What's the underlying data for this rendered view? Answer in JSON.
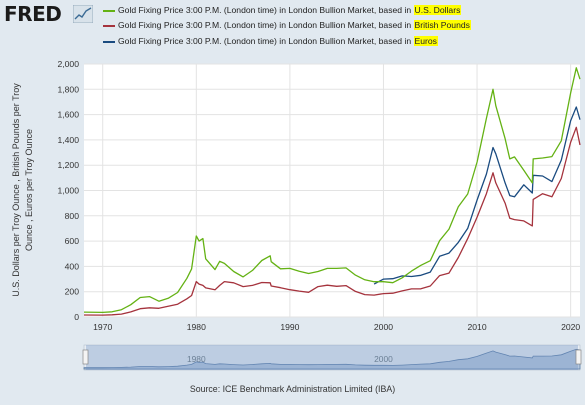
{
  "header": {
    "logo_text": "FRED",
    "logo_icon": "trend-chart-icon",
    "legend": [
      {
        "prefix": "Gold Fixing Price 3:00 P.M. (London time) in London Bullion Market, based in ",
        "highlight": "U.S. Dollars",
        "color": "#64b214"
      },
      {
        "prefix": "Gold Fixing Price 3:00 P.M. (London time) in London Bullion Market, based in ",
        "highlight": "British Pounds",
        "color": "#a5333d"
      },
      {
        "prefix": "Gold Fixing Price 3:00 P.M. (London time) in London Bullion Market, based in ",
        "highlight": "Euros",
        "color": "#1a4b80"
      }
    ]
  },
  "chart_data": {
    "type": "line",
    "ylabel": "U.S. Dollars per Troy Ounce , British Pounds per Troy Ounce , Euros per Troy Ounce",
    "xlim": [
      1968,
      2021
    ],
    "ylim": [
      0,
      2000
    ],
    "yticks": [
      0,
      200,
      400,
      600,
      800,
      1000,
      1200,
      1400,
      1600,
      1800,
      2000
    ],
    "ytick_labels": [
      "0",
      "200",
      "400",
      "600",
      "800",
      "1,000",
      "1,200",
      "1,400",
      "1,600",
      "1,800",
      "2,000"
    ],
    "xticks": [
      1970,
      1980,
      1990,
      2000,
      2010,
      2020
    ],
    "xtick_labels": [
      "1970",
      "1980",
      "1990",
      "2000",
      "2010",
      "2020"
    ],
    "grid": true,
    "series": [
      {
        "name": "U.S. Dollars",
        "color": "#64b214",
        "x": [
          1968,
          1970,
          1971,
          1972,
          1973,
          1974,
          1975,
          1976,
          1977,
          1978,
          1979,
          1979.5,
          1980,
          1980.3,
          1980.7,
          1981,
          1982,
          1982.5,
          1983,
          1984,
          1985,
          1986,
          1987,
          1987.9,
          1988,
          1989,
          1990,
          1991,
          1992,
          1993,
          1994,
          1995,
          1996,
          1997,
          1998,
          1999,
          2000,
          2001,
          2002,
          2003,
          2004,
          2005,
          2006,
          2007,
          2008,
          2009,
          2010,
          2011,
          2011.7,
          2012,
          2013,
          2013.5,
          2014,
          2015,
          2015.9,
          2016,
          2017,
          2018,
          2019,
          2020,
          2020.6,
          2021
        ],
        "values": [
          39,
          36,
          41,
          58,
          97,
          154,
          161,
          125,
          148,
          194,
          306,
          380,
          640,
          600,
          620,
          460,
          375,
          440,
          424,
          360,
          317,
          368,
          447,
          484,
          437,
          381,
          384,
          362,
          344,
          360,
          384,
          384,
          388,
          331,
          294,
          279,
          279,
          271,
          310,
          363,
          409,
          445,
          603,
          695,
          872,
          972,
          1225,
          1570,
          1800,
          1670,
          1410,
          1250,
          1266,
          1160,
          1060,
          1250,
          1257,
          1268,
          1393,
          1770,
          1970,
          1880
        ]
      },
      {
        "name": "British Pounds",
        "color": "#a5333d",
        "x": [
          1968,
          1970,
          1971,
          1972,
          1973,
          1974,
          1975,
          1976,
          1977,
          1978,
          1979,
          1979.5,
          1980,
          1980.3,
          1980.7,
          1981,
          1982,
          1982.5,
          1983,
          1984,
          1985,
          1986,
          1987,
          1987.9,
          1988,
          1989,
          1990,
          1991,
          1992,
          1993,
          1994,
          1995,
          1996,
          1997,
          1998,
          1999,
          2000,
          2001,
          2002,
          2003,
          2004,
          2005,
          2006,
          2007,
          2008,
          2009,
          2010,
          2011,
          2011.7,
          2012,
          2013,
          2013.5,
          2014,
          2015,
          2015.9,
          2016,
          2017,
          2018,
          2019,
          2020,
          2020.6,
          2021
        ],
        "values": [
          16,
          15,
          17,
          23,
          40,
          66,
          73,
          69,
          85,
          101,
          144,
          170,
          280,
          260,
          250,
          230,
          215,
          250,
          280,
          270,
          240,
          250,
          273,
          270,
          245,
          232,
          216,
          205,
          195,
          240,
          251,
          243,
          248,
          202,
          177,
          173,
          185,
          188,
          206,
          222,
          223,
          245,
          327,
          347,
          470,
          620,
          790,
          975,
          1140,
          1060,
          900,
          780,
          770,
          760,
          720,
          930,
          975,
          950,
          1095,
          1380,
          1500,
          1360
        ]
      },
      {
        "name": "Euros",
        "color": "#1a4b80",
        "x": [
          1999,
          2000,
          2001,
          2002,
          2003,
          2004,
          2005,
          2006,
          2007,
          2008,
          2009,
          2010,
          2011,
          2011.7,
          2012,
          2013,
          2013.5,
          2014,
          2015,
          2015.9,
          2016,
          2017,
          2018,
          2019,
          2020,
          2020.6,
          2021
        ],
        "values": [
          260,
          300,
          303,
          325,
          320,
          330,
          355,
          480,
          505,
          590,
          700,
          925,
          1130,
          1340,
          1290,
          1060,
          960,
          950,
          1045,
          980,
          1120,
          1115,
          1070,
          1240,
          1550,
          1660,
          1560
        ]
      }
    ]
  },
  "navigator": {
    "ticks": [
      1980,
      2000
    ],
    "tick_labels": [
      "1980",
      "2000"
    ]
  },
  "footer": {
    "source": "Source: ICE Benchmark Administration Limited (IBA)"
  }
}
